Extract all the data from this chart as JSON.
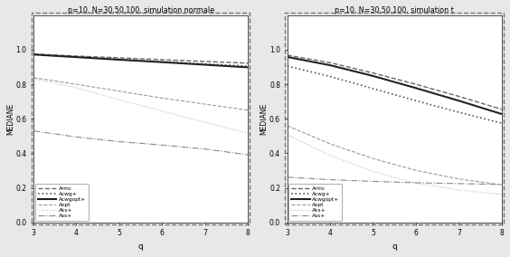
{
  "title_left": "p=10, N=30,50,100, simulation normale",
  "title_right": "p=10, N=30,50,100, simulation t",
  "xlabel": "q",
  "ylabel": "MEDIANE",
  "x": [
    3,
    4,
    5,
    6,
    7,
    8
  ],
  "ylim": [
    0.0,
    1.2
  ],
  "yticks": [
    0.0,
    0.2,
    0.4,
    0.6,
    0.8,
    1.0
  ],
  "left_series": {
    "Armc": [
      0.975,
      0.963,
      0.953,
      0.942,
      0.932,
      0.922
    ],
    "Acwg+": [
      0.973,
      0.958,
      0.945,
      0.93,
      0.918,
      0.905
    ],
    "Acwgopt+": [
      0.972,
      0.957,
      0.942,
      0.928,
      0.913,
      0.898
    ],
    "Aopt": [
      0.838,
      0.8,
      0.76,
      0.72,
      0.685,
      0.65
    ],
    "Aks+": [
      0.832,
      0.78,
      0.71,
      0.645,
      0.58,
      0.515
    ],
    "Ass+": [
      0.53,
      0.495,
      0.468,
      0.448,
      0.425,
      0.392
    ]
  },
  "right_series": {
    "Armc": [
      0.968,
      0.925,
      0.865,
      0.8,
      0.73,
      0.655
    ],
    "Acwg+": [
      0.905,
      0.845,
      0.775,
      0.705,
      0.638,
      0.575
    ],
    "Acwgopt+": [
      0.958,
      0.91,
      0.848,
      0.778,
      0.705,
      0.628
    ],
    "Aopt": [
      0.56,
      0.455,
      0.37,
      0.302,
      0.252,
      0.218
    ],
    "Aks+": [
      0.508,
      0.388,
      0.295,
      0.228,
      0.188,
      0.162
    ],
    "Ass+": [
      0.262,
      0.248,
      0.238,
      0.23,
      0.225,
      0.22
    ]
  },
  "line_styles": {
    "Armc": {
      "ls": "--",
      "lw": 1.0,
      "color": "#666666",
      "dashes": [
        4,
        2
      ]
    },
    "Acwg+": {
      "ls": ":",
      "lw": 1.2,
      "color": "#555555",
      "dashes": null
    },
    "Acwgopt+": {
      "ls": "-",
      "lw": 1.5,
      "color": "#222222",
      "dashes": null
    },
    "Aopt": {
      "ls": "--",
      "lw": 0.8,
      "color": "#999999",
      "dashes": [
        2,
        2
      ]
    },
    "Aks+": {
      "ls": ":",
      "lw": 0.8,
      "color": "#bbbbbb",
      "dashes": null
    },
    "Ass+": {
      "ls": "-.",
      "lw": 0.8,
      "color": "#888888",
      "dashes": null
    }
  },
  "bg_color": "#e8e8e8",
  "plot_bg": "#ffffff",
  "outer_border_ls": "--",
  "outer_border_color": "#777777",
  "outer_border_lw": 1.0
}
